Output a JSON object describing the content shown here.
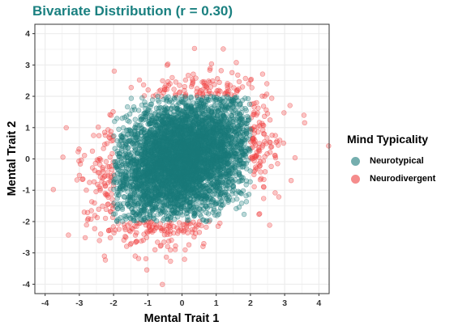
{
  "colors": {
    "title": "#1a8080",
    "neurotypical": "#1a7a7a",
    "neurodivergent": "#f04040",
    "grid": "#ebebeb",
    "panel_border": "#333333"
  },
  "chart_data": {
    "type": "scatter",
    "title": "Bivariate Distribution (r = 0.30)",
    "xlabel": "Mental Trait 1",
    "ylabel": "Mental Trait 2",
    "xlim": [
      -4.3,
      4.3
    ],
    "ylim": [
      -4.3,
      4.3
    ],
    "x_ticks": [
      -4,
      -3,
      -2,
      -1,
      0,
      1,
      2,
      3,
      4
    ],
    "y_ticks": [
      -4,
      -3,
      -2,
      -1,
      0,
      1,
      2,
      3,
      4
    ],
    "x_tick_labels": [
      "-4",
      "-3",
      "-2",
      "-1",
      "0",
      "1",
      "2",
      "3",
      "4"
    ],
    "y_tick_labels": [
      "-4",
      "-3",
      "-2",
      "-1",
      "0",
      "1",
      "2",
      "3",
      "4"
    ],
    "grid": true,
    "legend": {
      "title": "Mind Typicality",
      "position": "right",
      "entries": [
        "Neurotypical",
        "Neurodivergent"
      ]
    },
    "series": [
      {
        "name": "Neurotypical",
        "color": "#1a7a7a",
        "description_region": "points with -2 <= x <= 2 and -2 <= y <= 2",
        "x": [
          -1.9,
          -1.7,
          -1.5,
          -1.3,
          -1.1,
          -0.9,
          -0.7,
          -0.5,
          -0.3,
          -0.1,
          0.1,
          0.3,
          0.5,
          0.7,
          0.9,
          1.1,
          1.3,
          1.5,
          1.7,
          1.9
        ],
        "y": [
          -1.6,
          -1.3,
          -1.0,
          -0.8,
          -0.5,
          -0.3,
          -0.2,
          0.0,
          0.1,
          -0.1,
          0.2,
          0.3,
          0.1,
          0.4,
          0.5,
          0.6,
          0.8,
          1.0,
          1.2,
          1.5
        ]
      },
      {
        "name": "Neurodivergent",
        "color": "#f04040",
        "description_region": "points with |x| > 2 or |y| > 2",
        "x": [
          -3.6,
          -3.3,
          -3.0,
          -2.8,
          -2.5,
          -2.3,
          -2.2,
          -2.1,
          2.1,
          2.2,
          2.4,
          2.6,
          2.9,
          3.2,
          3.5,
          3.9,
          -1.0,
          -0.5,
          0.0,
          0.5,
          1.0,
          1.5,
          -1.2,
          -0.4,
          0.3,
          0.8
        ],
        "y": [
          -0.2,
          -1.2,
          -2.3,
          0.8,
          -1.6,
          1.1,
          -0.4,
          -2.6,
          0.6,
          -1.3,
          1.7,
          2.3,
          1.1,
          2.8,
          0.3,
          2.3,
          2.3,
          2.7,
          3.0,
          2.5,
          2.2,
          2.6,
          -2.3,
          -2.8,
          -3.4,
          -2.5
        ]
      }
    ]
  }
}
